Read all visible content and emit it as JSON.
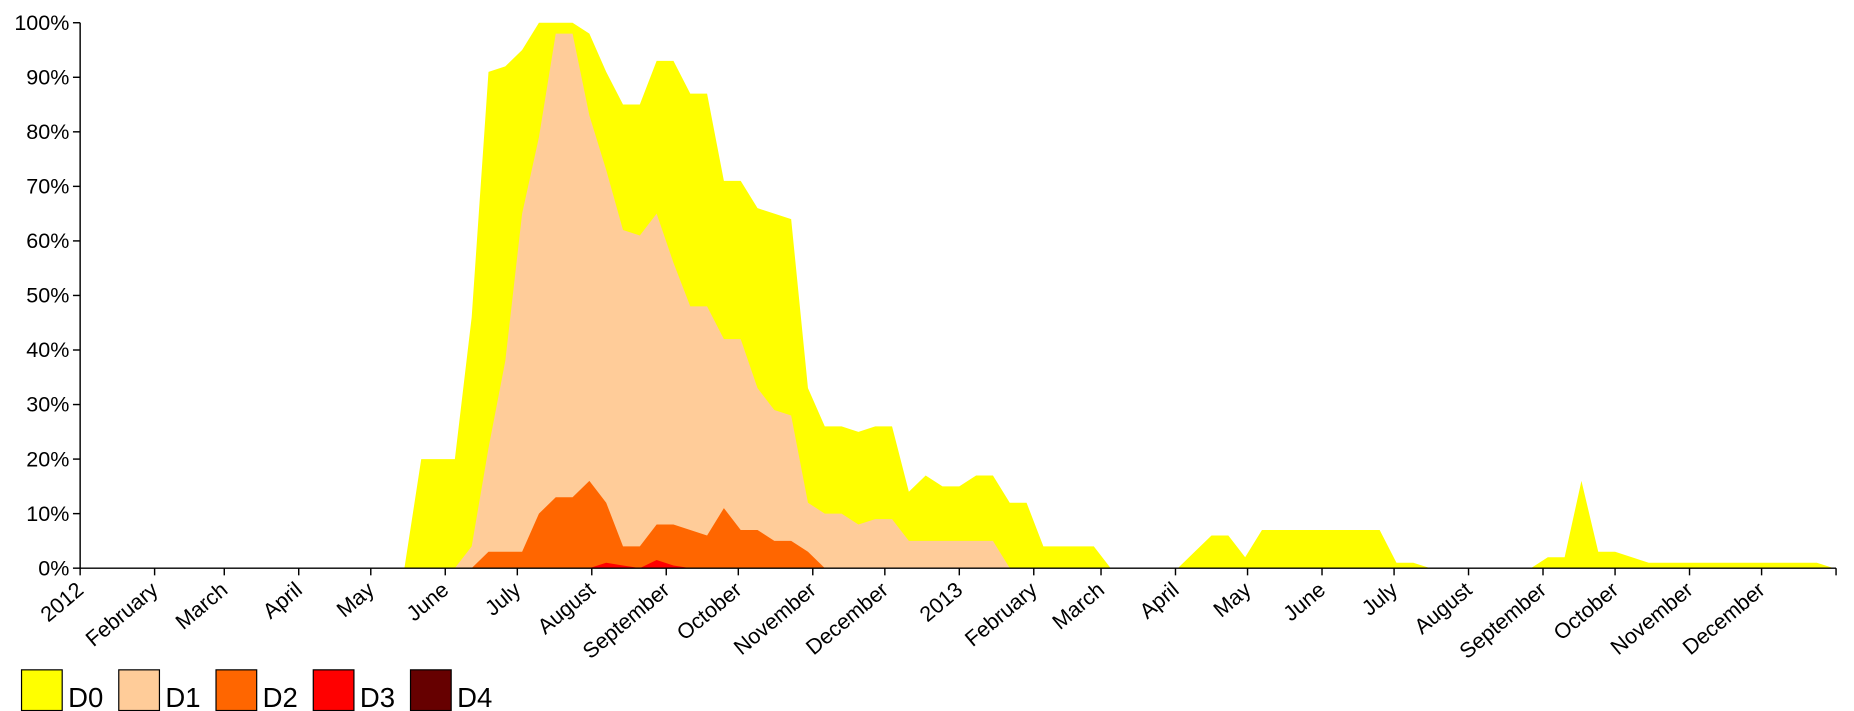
{
  "chart_data": {
    "type": "area",
    "x": [
      "2012-05-08",
      "2012-05-15",
      "2012-05-22",
      "2012-05-29",
      "2012-06-05",
      "2012-06-12",
      "2012-06-19",
      "2012-06-26",
      "2012-07-03",
      "2012-07-10",
      "2012-07-17",
      "2012-07-24",
      "2012-07-31",
      "2012-08-07",
      "2012-08-14",
      "2012-08-21",
      "2012-08-28",
      "2012-09-04",
      "2012-09-11",
      "2012-09-18",
      "2012-09-25",
      "2012-10-02",
      "2012-10-09",
      "2012-10-16",
      "2012-10-23",
      "2012-10-30",
      "2012-11-06",
      "2012-11-13",
      "2012-11-20",
      "2012-11-27",
      "2012-12-04",
      "2012-12-11",
      "2012-12-18",
      "2012-12-25",
      "2013-01-01",
      "2013-01-08",
      "2013-01-15",
      "2013-01-22",
      "2013-01-29",
      "2013-02-05",
      "2013-02-12",
      "2013-02-19",
      "2013-02-26",
      "2013-03-05",
      "2013-03-12",
      "2013-03-19",
      "2013-03-26",
      "2013-04-02",
      "2013-04-09",
      "2013-04-16",
      "2013-04-23",
      "2013-04-30",
      "2013-05-07",
      "2013-05-14",
      "2013-05-21",
      "2013-05-28",
      "2013-06-04",
      "2013-06-11",
      "2013-06-18",
      "2013-06-25",
      "2013-07-02",
      "2013-07-09",
      "2013-07-16",
      "2013-07-23",
      "2013-07-30",
      "2013-08-06",
      "2013-08-13",
      "2013-08-20",
      "2013-08-27",
      "2013-09-03",
      "2013-09-10",
      "2013-09-17",
      "2013-09-24",
      "2013-10-01",
      "2013-10-08",
      "2013-10-15",
      "2013-10-22",
      "2013-10-29",
      "2013-11-05",
      "2013-11-12",
      "2013-11-19",
      "2013-11-26",
      "2013-12-03",
      "2013-12-10",
      "2013-12-17",
      "2013-12-24",
      "2013-12-31"
    ],
    "series": [
      {
        "name": "D0",
        "color": "#ffff00",
        "values": [
          0,
          0,
          20,
          20,
          20,
          46,
          91,
          92,
          95,
          100,
          100,
          100,
          98,
          91,
          85,
          85,
          93,
          93,
          87,
          87,
          71,
          71,
          66,
          65,
          64,
          33,
          26,
          26,
          25,
          26,
          26,
          14,
          17,
          15,
          15,
          17,
          17,
          12,
          12,
          4,
          4,
          4,
          4,
          0,
          0,
          0,
          0,
          0,
          3,
          6,
          6,
          2,
          7,
          7,
          7,
          7,
          7,
          7,
          7,
          7,
          1,
          1,
          0,
          0,
          0,
          0,
          0,
          0,
          0,
          2,
          2,
          16,
          3,
          3,
          2,
          1,
          1,
          1,
          1,
          1,
          1,
          1,
          1,
          1,
          1,
          1,
          0
        ]
      },
      {
        "name": "D1",
        "color": "#ffcc99",
        "values": [
          0,
          0,
          0,
          0,
          0,
          4,
          22,
          38,
          65,
          79,
          98,
          98,
          83,
          73,
          62,
          61,
          65,
          56,
          48,
          48,
          42,
          42,
          33,
          29,
          28,
          12,
          10,
          10,
          8,
          9,
          9,
          5,
          5,
          5,
          5,
          5,
          5,
          0,
          0,
          0,
          0,
          0,
          0,
          0,
          0,
          0,
          0,
          0,
          0,
          0,
          0,
          0,
          0,
          0,
          0,
          0,
          0,
          0,
          0,
          0,
          0,
          0,
          0,
          0,
          0,
          0,
          0,
          0,
          0,
          0,
          0,
          0,
          0,
          0,
          0,
          0,
          0,
          0,
          0,
          0,
          0,
          0,
          0,
          0,
          0,
          0,
          0
        ]
      },
      {
        "name": "D2",
        "color": "#ff6600",
        "values": [
          0,
          0,
          0,
          0,
          0,
          0,
          3,
          3,
          3,
          10,
          13,
          13,
          16,
          12,
          4,
          4,
          8,
          8,
          7,
          6,
          11,
          7,
          7,
          5,
          5,
          3,
          0,
          0,
          0,
          0,
          0,
          0,
          0,
          0,
          0,
          0,
          0,
          0,
          0,
          0,
          0,
          0,
          0,
          0,
          0,
          0,
          0,
          0,
          0,
          0,
          0,
          0,
          0,
          0,
          0,
          0,
          0,
          0,
          0,
          0,
          0,
          0,
          0,
          0,
          0,
          0,
          0,
          0,
          0,
          0,
          0,
          0,
          0,
          0,
          0,
          0,
          0,
          0,
          0,
          0,
          0,
          0,
          0,
          0,
          0,
          0,
          0
        ]
      },
      {
        "name": "D3",
        "color": "#ff0000",
        "values": [
          0,
          0,
          0,
          0,
          0,
          0,
          0,
          0,
          0,
          0,
          0,
          0,
          0,
          1,
          0.5,
          0,
          1.5,
          0.5,
          0,
          0,
          0,
          0,
          0,
          0,
          0,
          0,
          0,
          0,
          0,
          0,
          0,
          0,
          0,
          0,
          0,
          0,
          0,
          0,
          0,
          0,
          0,
          0,
          0,
          0,
          0,
          0,
          0,
          0,
          0,
          0,
          0,
          0,
          0,
          0,
          0,
          0,
          0,
          0,
          0,
          0,
          0,
          0,
          0,
          0,
          0,
          0,
          0,
          0,
          0,
          0,
          0,
          0,
          0,
          0,
          0,
          0,
          0,
          0,
          0,
          0,
          0,
          0,
          0,
          0,
          0,
          0,
          0
        ]
      },
      {
        "name": "D4",
        "color": "#660000",
        "values": [
          0,
          0,
          0,
          0,
          0,
          0,
          0,
          0,
          0,
          0,
          0,
          0,
          0,
          0,
          0,
          0,
          0,
          0,
          0,
          0,
          0,
          0,
          0,
          0,
          0,
          0,
          0,
          0,
          0,
          0,
          0,
          0,
          0,
          0,
          0,
          0,
          0,
          0,
          0,
          0,
          0,
          0,
          0,
          0,
          0,
          0,
          0,
          0,
          0,
          0,
          0,
          0,
          0,
          0,
          0,
          0,
          0,
          0,
          0,
          0,
          0,
          0,
          0,
          0,
          0,
          0,
          0,
          0,
          0,
          0,
          0,
          0,
          0,
          0,
          0,
          0,
          0,
          0,
          0,
          0,
          0,
          0,
          0,
          0,
          0,
          0,
          0
        ]
      }
    ],
    "xlim": [
      "2012-01",
      "2014-01"
    ],
    "xticks": [
      {
        "value": "2012-01",
        "label": "2012"
      },
      {
        "value": "2012-02",
        "label": "February"
      },
      {
        "value": "2012-03",
        "label": "March"
      },
      {
        "value": "2012-04",
        "label": "April"
      },
      {
        "value": "2012-05",
        "label": "May"
      },
      {
        "value": "2012-06",
        "label": "June"
      },
      {
        "value": "2012-07",
        "label": "July"
      },
      {
        "value": "2012-08",
        "label": "August"
      },
      {
        "value": "2012-09",
        "label": "September"
      },
      {
        "value": "2012-10",
        "label": "October"
      },
      {
        "value": "2012-11",
        "label": "November"
      },
      {
        "value": "2012-12",
        "label": "December"
      },
      {
        "value": "2013-01",
        "label": "2013"
      },
      {
        "value": "2013-02",
        "label": "February"
      },
      {
        "value": "2013-03",
        "label": "March"
      },
      {
        "value": "2013-04",
        "label": "April"
      },
      {
        "value": "2013-05",
        "label": "May"
      },
      {
        "value": "2013-06",
        "label": "June"
      },
      {
        "value": "2013-07",
        "label": "July"
      },
      {
        "value": "2013-08",
        "label": "August"
      },
      {
        "value": "2013-09",
        "label": "September"
      },
      {
        "value": "2013-10",
        "label": "October"
      },
      {
        "value": "2013-11",
        "label": "November"
      },
      {
        "value": "2013-12",
        "label": "December"
      }
    ],
    "ylim": [
      0,
      100
    ],
    "yticks": [
      {
        "value": 0,
        "label": "0%"
      },
      {
        "value": 10,
        "label": "10%"
      },
      {
        "value": 20,
        "label": "20%"
      },
      {
        "value": 30,
        "label": "30%"
      },
      {
        "value": 40,
        "label": "40%"
      },
      {
        "value": 50,
        "label": "50%"
      },
      {
        "value": 60,
        "label": "60%"
      },
      {
        "value": 70,
        "label": "70%"
      },
      {
        "value": 80,
        "label": "80%"
      },
      {
        "value": 90,
        "label": "90%"
      },
      {
        "value": 100,
        "label": "100%"
      }
    ],
    "legend": "bottom-left"
  }
}
